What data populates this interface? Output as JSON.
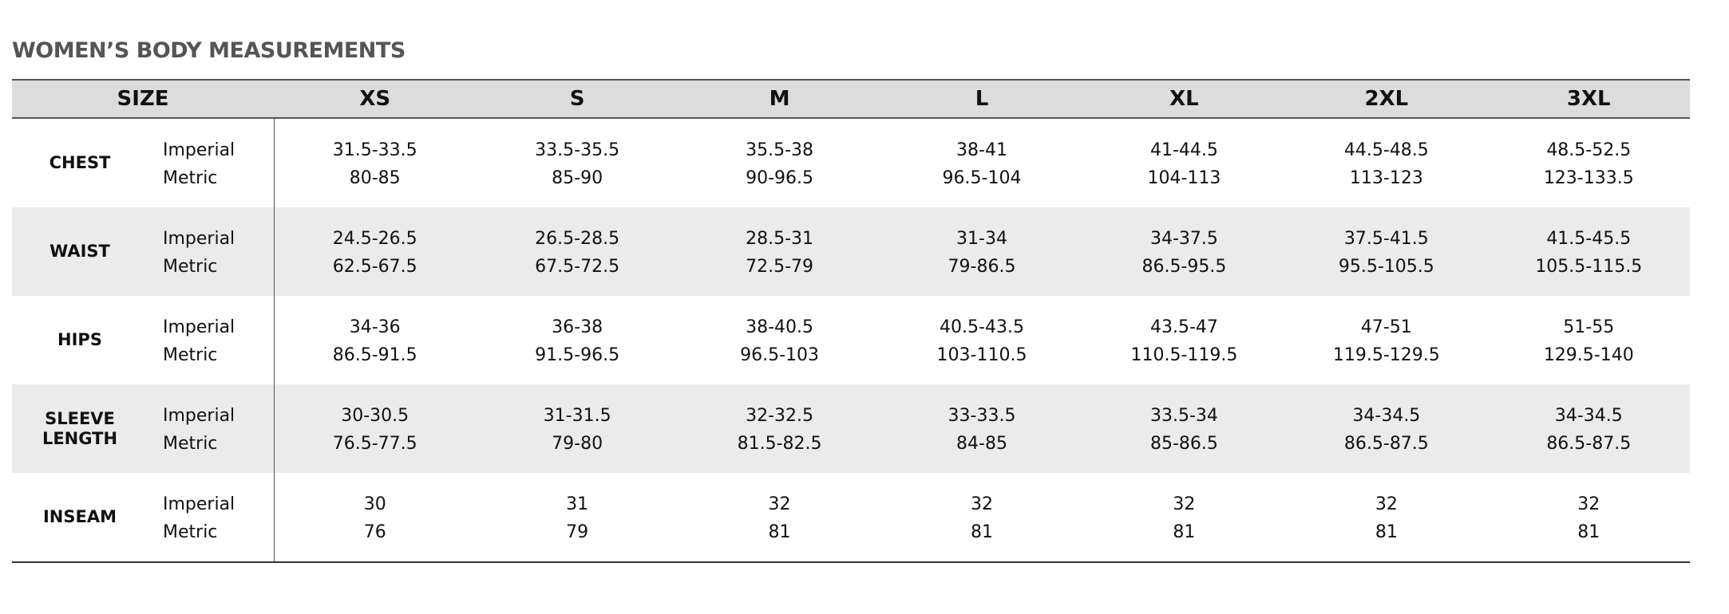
{
  "header": {
    "title": "WOMEN’S BODY MEASUREMENTS"
  },
  "table": {
    "size_label": "SIZE",
    "columns": [
      "XS",
      "S",
      "M",
      "L",
      "XL",
      "2XL",
      "3XL"
    ],
    "rows": [
      {
        "label": "CHEST",
        "lines": [
          {
            "unit": "Imperial",
            "values": [
              "31.5-33.5",
              "33.5-35.5",
              "35.5-38",
              "38-41",
              "41-44.5",
              "44.5-48.5",
              "48.5-52.5"
            ]
          },
          {
            "unit": "Metric",
            "values": [
              "80-85",
              "85-90",
              "90-96.5",
              "96.5-104",
              "104-113",
              "113-123",
              "123-133.5"
            ]
          }
        ]
      },
      {
        "label": "WAIST",
        "lines": [
          {
            "unit": "Imperial",
            "values": [
              "24.5-26.5",
              "26.5-28.5",
              "28.5-31",
              "31-34",
              "34-37.5",
              "37.5-41.5",
              "41.5-45.5"
            ]
          },
          {
            "unit": "Metric",
            "values": [
              "62.5-67.5",
              "67.5-72.5",
              "72.5-79",
              "79-86.5",
              "86.5-95.5",
              "95.5-105.5",
              "105.5-115.5"
            ]
          }
        ]
      },
      {
        "label": "HIPS",
        "lines": [
          {
            "unit": "Imperial",
            "values": [
              "34-36",
              "36-38",
              "38-40.5",
              "40.5-43.5",
              "43.5-47",
              "47-51",
              "51-55"
            ]
          },
          {
            "unit": "Metric",
            "values": [
              "86.5-91.5",
              "91.5-96.5",
              "96.5-103",
              "103-110.5",
              "110.5-119.5",
              "119.5-129.5",
              "129.5-140"
            ]
          }
        ]
      },
      {
        "label": "SLEEVE LENGTH",
        "lines": [
          {
            "unit": "Imperial",
            "values": [
              "30-30.5",
              "31-31.5",
              "32-32.5",
              "33-33.5",
              "33.5-34",
              "34-34.5",
              "34-34.5"
            ]
          },
          {
            "unit": "Metric",
            "values": [
              "76.5-77.5",
              "79-80",
              "81.5-82.5",
              "84-85",
              "85-86.5",
              "86.5-87.5",
              "86.5-87.5"
            ]
          }
        ]
      },
      {
        "label": "INSEAM",
        "lines": [
          {
            "unit": "Imperial",
            "values": [
              "30",
              "31",
              "32",
              "32",
              "32",
              "32",
              "32"
            ]
          },
          {
            "unit": "Metric",
            "values": [
              "76",
              "79",
              "81",
              "81",
              "81",
              "81",
              "81"
            ]
          }
        ]
      }
    ]
  }
}
